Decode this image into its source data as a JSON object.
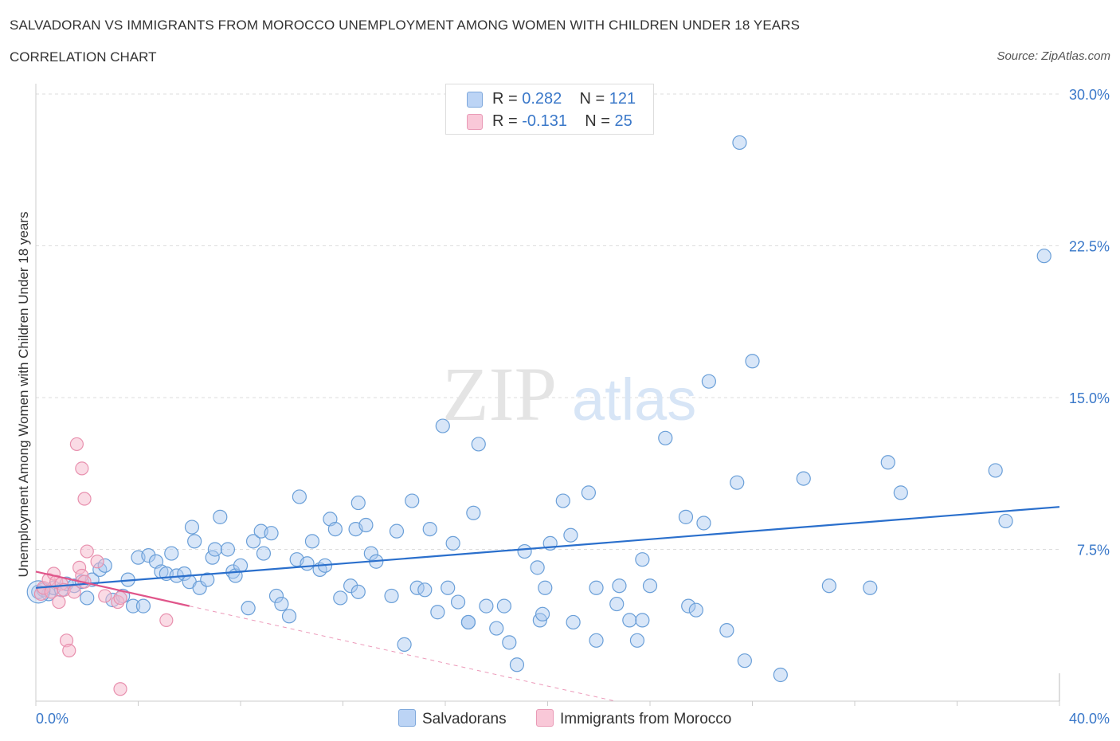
{
  "title": "SALVADORAN VS IMMIGRANTS FROM MOROCCO UNEMPLOYMENT AMONG WOMEN WITH CHILDREN UNDER 18 YEARS",
  "subtitle": "CORRELATION CHART",
  "source": "Source: ZipAtlas.com",
  "watermark": {
    "zip": "ZIP",
    "atlas": "atlas"
  },
  "colors": {
    "blue_fill": "#a8c8f0",
    "blue_stroke": "#6a9fd8",
    "blue_line": "#2a6fcc",
    "pink_fill": "#f6b8cc",
    "pink_stroke": "#e890ae",
    "pink_line": "#e0558a",
    "tick_label": "#3a78c9",
    "grid": "#dddddd"
  },
  "legend": {
    "rows": [
      {
        "r_label": "R = ",
        "r_value": "0.282",
        "n_label": "N = ",
        "n_value": "121"
      },
      {
        "r_label": "R = ",
        "r_value": "-0.131",
        "n_label": "N = ",
        "n_value": "25"
      }
    ]
  },
  "bottom_legend": [
    "Salvadorans",
    "Immigrants from Morocco"
  ],
  "chart_data": {
    "type": "scatter",
    "title": "SALVADORAN VS IMMIGRANTS FROM MOROCCO UNEMPLOYMENT AMONG WOMEN WITH CHILDREN UNDER 18 YEARS",
    "xlabel": "",
    "ylabel": "Unemployment Among Women with Children Under 18 years",
    "xlim": [
      0,
      40
    ],
    "ylim": [
      0,
      30
    ],
    "x_tick_labels": [
      "0.0%",
      "40.0%"
    ],
    "y_ticks": [
      7.5,
      15.0,
      22.5,
      30.0
    ],
    "y_tick_labels": [
      "7.5%",
      "15.0%",
      "22.5%",
      "30.0%"
    ],
    "grid": true,
    "legend_placement": "top-center",
    "series": [
      {
        "name": "Salvadorans",
        "r": 0.282,
        "n": 121,
        "trend": {
          "x": [
            0,
            40
          ],
          "y": [
            5.6,
            9.6
          ]
        },
        "points": [
          [
            0.1,
            5.4
          ],
          [
            0.3,
            5.5
          ],
          [
            0.5,
            5.3
          ],
          [
            0.7,
            5.6
          ],
          [
            1.0,
            5.5
          ],
          [
            1.2,
            5.8
          ],
          [
            1.5,
            5.7
          ],
          [
            1.8,
            5.9
          ],
          [
            2.0,
            5.1
          ],
          [
            2.2,
            6.0
          ],
          [
            2.5,
            6.5
          ],
          [
            2.7,
            6.7
          ],
          [
            3.0,
            5.0
          ],
          [
            3.4,
            5.2
          ],
          [
            3.6,
            6.0
          ],
          [
            3.8,
            4.7
          ],
          [
            4.2,
            4.7
          ],
          [
            4.0,
            7.1
          ],
          [
            4.4,
            7.2
          ],
          [
            4.7,
            6.9
          ],
          [
            4.9,
            6.4
          ],
          [
            5.1,
            6.3
          ],
          [
            5.3,
            7.3
          ],
          [
            5.5,
            6.2
          ],
          [
            5.8,
            6.3
          ],
          [
            6.0,
            5.9
          ],
          [
            6.1,
            8.6
          ],
          [
            6.2,
            7.9
          ],
          [
            6.4,
            5.6
          ],
          [
            6.7,
            6.0
          ],
          [
            6.9,
            7.1
          ],
          [
            7.0,
            7.5
          ],
          [
            7.2,
            9.1
          ],
          [
            7.5,
            7.5
          ],
          [
            7.7,
            6.4
          ],
          [
            7.8,
            6.2
          ],
          [
            8.0,
            6.7
          ],
          [
            8.3,
            4.6
          ],
          [
            8.5,
            7.9
          ],
          [
            8.8,
            8.4
          ],
          [
            8.9,
            7.3
          ],
          [
            9.2,
            8.3
          ],
          [
            9.4,
            5.2
          ],
          [
            9.6,
            4.8
          ],
          [
            9.9,
            4.2
          ],
          [
            10.2,
            7.0
          ],
          [
            10.3,
            10.1
          ],
          [
            10.6,
            6.8
          ],
          [
            10.8,
            7.9
          ],
          [
            11.1,
            6.5
          ],
          [
            11.3,
            6.7
          ],
          [
            11.5,
            9.0
          ],
          [
            11.7,
            8.5
          ],
          [
            11.9,
            5.1
          ],
          [
            12.3,
            5.7
          ],
          [
            12.6,
            5.4
          ],
          [
            12.5,
            8.5
          ],
          [
            12.6,
            9.8
          ],
          [
            12.9,
            8.7
          ],
          [
            13.1,
            7.3
          ],
          [
            13.3,
            6.9
          ],
          [
            13.9,
            5.2
          ],
          [
            14.1,
            8.4
          ],
          [
            14.4,
            2.8
          ],
          [
            14.7,
            9.9
          ],
          [
            14.9,
            5.6
          ],
          [
            15.2,
            5.5
          ],
          [
            15.4,
            8.5
          ],
          [
            15.7,
            4.4
          ],
          [
            15.9,
            13.6
          ],
          [
            16.1,
            5.6
          ],
          [
            16.3,
            7.8
          ],
          [
            16.5,
            4.9
          ],
          [
            16.9,
            3.9
          ],
          [
            16.9,
            3.9
          ],
          [
            17.1,
            9.3
          ],
          [
            17.3,
            12.7
          ],
          [
            17.6,
            4.7
          ],
          [
            18.0,
            3.6
          ],
          [
            18.3,
            4.7
          ],
          [
            18.5,
            2.9
          ],
          [
            18.8,
            1.8
          ],
          [
            19.1,
            7.4
          ],
          [
            19.6,
            6.6
          ],
          [
            19.7,
            4.0
          ],
          [
            19.8,
            4.3
          ],
          [
            20.1,
            7.8
          ],
          [
            20.6,
            9.9
          ],
          [
            20.9,
            8.2
          ],
          [
            21.0,
            3.9
          ],
          [
            21.6,
            10.3
          ],
          [
            21.9,
            3.0
          ],
          [
            21.9,
            5.6
          ],
          [
            22.7,
            4.8
          ],
          [
            22.8,
            5.7
          ],
          [
            23.2,
            4.0
          ],
          [
            23.5,
            3.0
          ],
          [
            23.7,
            4.0
          ],
          [
            23.7,
            7.0
          ],
          [
            24.0,
            5.7
          ],
          [
            24.6,
            13.0
          ],
          [
            25.4,
            9.1
          ],
          [
            25.5,
            4.7
          ],
          [
            25.8,
            4.5
          ],
          [
            26.1,
            8.8
          ],
          [
            26.3,
            15.8
          ],
          [
            27.0,
            3.5
          ],
          [
            27.4,
            10.8
          ],
          [
            27.5,
            27.6
          ],
          [
            27.7,
            2.0
          ],
          [
            28.0,
            16.8
          ],
          [
            29.1,
            1.3
          ],
          [
            30.0,
            11.0
          ],
          [
            31.0,
            5.7
          ],
          [
            32.6,
            5.6
          ],
          [
            33.3,
            11.8
          ],
          [
            33.8,
            10.3
          ],
          [
            37.5,
            11.4
          ],
          [
            37.9,
            8.9
          ],
          [
            39.4,
            22.0
          ],
          [
            19.9,
            5.6
          ]
        ]
      },
      {
        "name": "Immigrants from Morocco",
        "r": -0.131,
        "n": 25,
        "trend": {
          "x": [
            0,
            6
          ],
          "y": [
            6.4,
            4.7
          ],
          "dashed_x": [
            6,
            40
          ],
          "dashed_y": [
            4.7,
            -4.9
          ]
        },
        "points": [
          [
            0.2,
            5.3
          ],
          [
            0.3,
            5.6
          ],
          [
            0.5,
            6.0
          ],
          [
            0.6,
            5.4
          ],
          [
            0.7,
            6.3
          ],
          [
            0.8,
            5.9
          ],
          [
            0.9,
            4.9
          ],
          [
            1.0,
            5.8
          ],
          [
            1.1,
            5.5
          ],
          [
            1.2,
            3.0
          ],
          [
            1.3,
            2.5
          ],
          [
            1.5,
            5.4
          ],
          [
            1.6,
            12.7
          ],
          [
            1.7,
            6.6
          ],
          [
            1.8,
            6.2
          ],
          [
            1.8,
            11.5
          ],
          [
            1.9,
            10.0
          ],
          [
            1.9,
            5.9
          ],
          [
            2.0,
            7.4
          ],
          [
            2.4,
            6.9
          ],
          [
            2.7,
            5.2
          ],
          [
            3.2,
            4.9
          ],
          [
            3.3,
            5.1
          ],
          [
            3.3,
            0.6
          ],
          [
            5.1,
            4.0
          ]
        ]
      }
    ]
  }
}
